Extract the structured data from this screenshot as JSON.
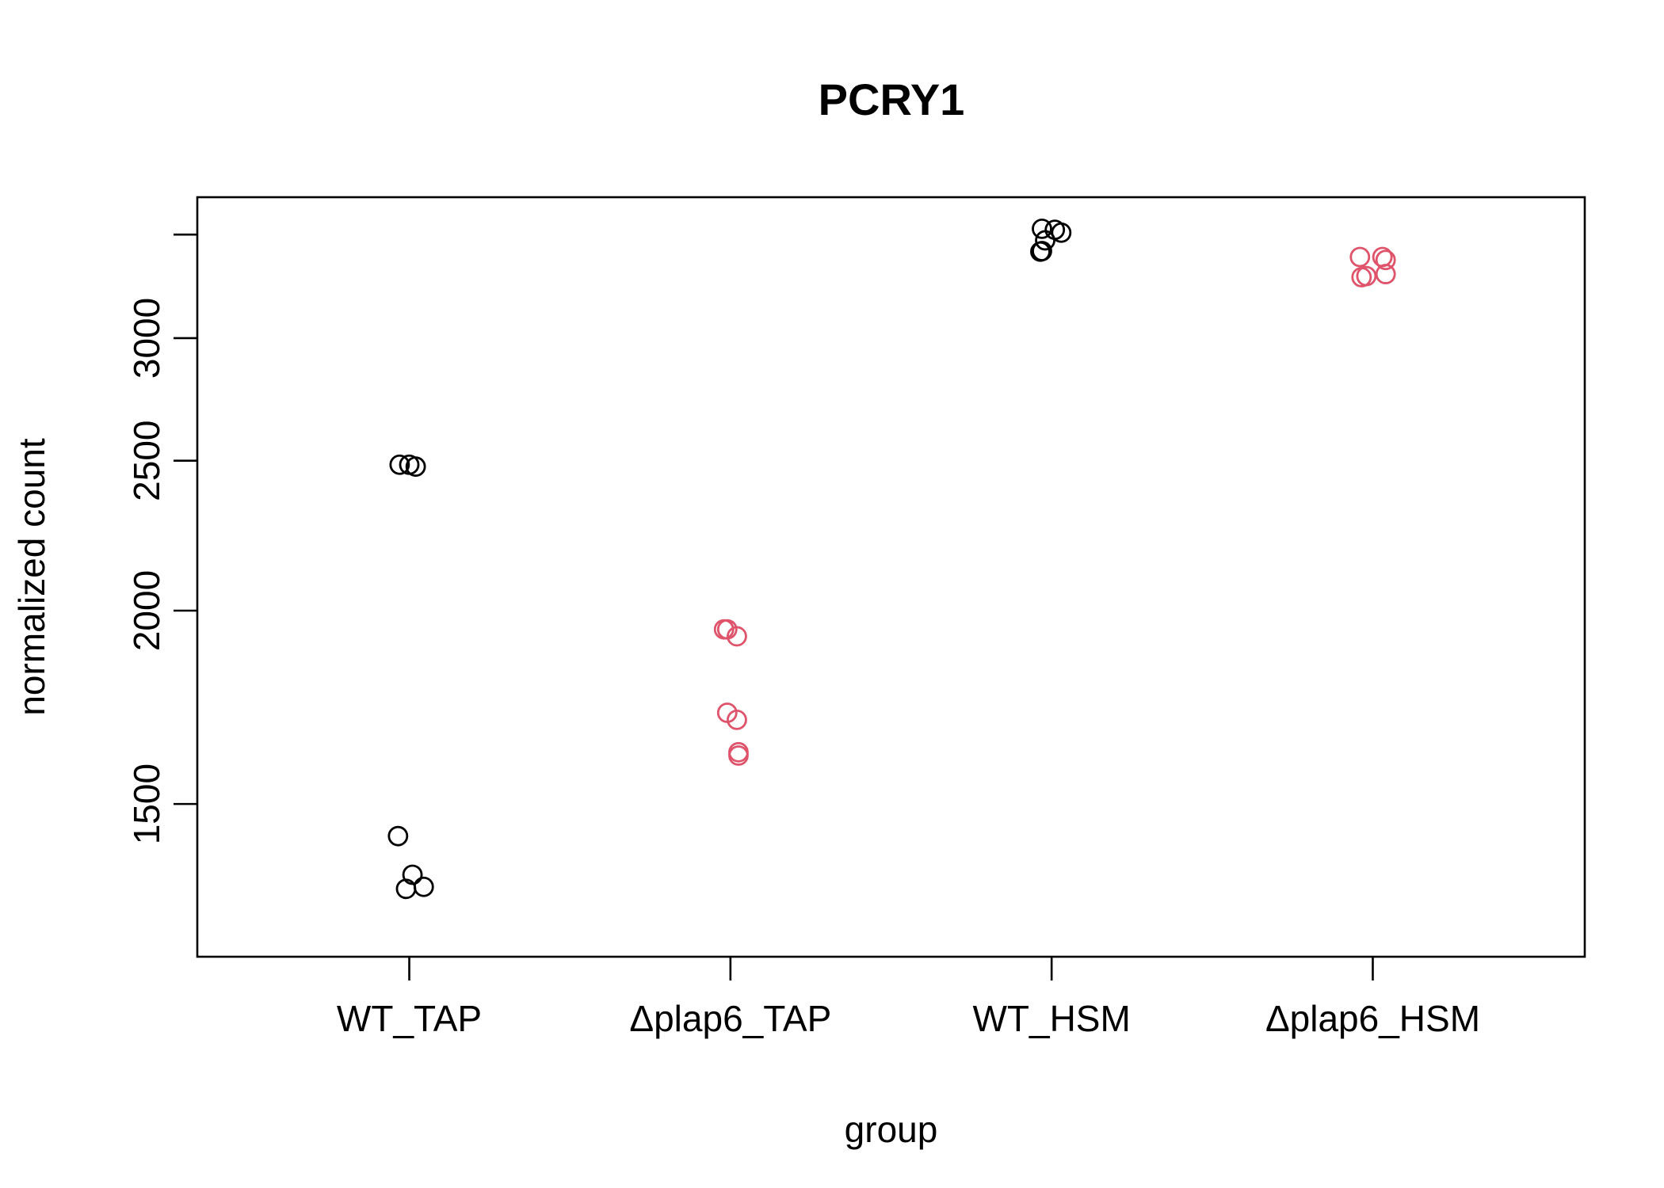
{
  "chart_data": {
    "type": "scatter",
    "title": "PCRY1",
    "xlabel": "group",
    "ylabel": "normalized count",
    "categories": [
      "WT_TAP",
      "Δplap6_TAP",
      "WT_HSM",
      "Δplap6_HSM"
    ],
    "y_scale": "log",
    "ylim": [
      1195,
      3700
    ],
    "yticks": [
      1500,
      2000,
      2500,
      3000
    ],
    "ytick_labels": [
      "1500",
      "2000",
      "2500",
      "3000"
    ],
    "grid": false,
    "legend": "none",
    "colors": {
      "WT_TAP": "#000000",
      "Δplap6_TAP": "#DF536B",
      "WT_HSM": "#000000",
      "Δplap6_HSM": "#DF536B"
    },
    "points": [
      {
        "group": "WT_TAP",
        "jitter": -0.03,
        "y": 2485
      },
      {
        "group": "WT_TAP",
        "jitter": 0.0,
        "y": 2485
      },
      {
        "group": "WT_TAP",
        "jitter": 0.02,
        "y": 2478
      },
      {
        "group": "WT_TAP",
        "jitter": -0.035,
        "y": 1430
      },
      {
        "group": "WT_TAP",
        "jitter": 0.01,
        "y": 1350
      },
      {
        "group": "WT_TAP",
        "jitter": -0.01,
        "y": 1322
      },
      {
        "group": "WT_TAP",
        "jitter": 0.045,
        "y": 1326
      },
      {
        "group": "Δplap6_TAP",
        "jitter": -0.02,
        "y": 1945
      },
      {
        "group": "Δplap6_TAP",
        "jitter": -0.01,
        "y": 1945
      },
      {
        "group": "Δplap6_TAP",
        "jitter": 0.02,
        "y": 1925
      },
      {
        "group": "Δplap6_TAP",
        "jitter": -0.01,
        "y": 1718
      },
      {
        "group": "Δplap6_TAP",
        "jitter": 0.02,
        "y": 1700
      },
      {
        "group": "Δplap6_TAP",
        "jitter": 0.025,
        "y": 1620
      },
      {
        "group": "Δplap6_TAP",
        "jitter": 0.025,
        "y": 1612
      },
      {
        "group": "WT_HSM",
        "jitter": -0.03,
        "y": 3530
      },
      {
        "group": "WT_HSM",
        "jitter": 0.01,
        "y": 3525
      },
      {
        "group": "WT_HSM",
        "jitter": 0.03,
        "y": 3510
      },
      {
        "group": "WT_HSM",
        "jitter": -0.02,
        "y": 3470
      },
      {
        "group": "WT_HSM",
        "jitter": -0.03,
        "y": 3415
      },
      {
        "group": "WT_HSM",
        "jitter": -0.035,
        "y": 3412
      },
      {
        "group": "Δplap6_HSM",
        "jitter": -0.04,
        "y": 3385
      },
      {
        "group": "Δplap6_HSM",
        "jitter": 0.03,
        "y": 3385
      },
      {
        "group": "Δplap6_HSM",
        "jitter": 0.04,
        "y": 3370
      },
      {
        "group": "Δplap6_HSM",
        "jitter": 0.04,
        "y": 3300
      },
      {
        "group": "Δplap6_HSM",
        "jitter": -0.02,
        "y": 3290
      },
      {
        "group": "Δplap6_HSM",
        "jitter": -0.035,
        "y": 3285
      }
    ]
  }
}
